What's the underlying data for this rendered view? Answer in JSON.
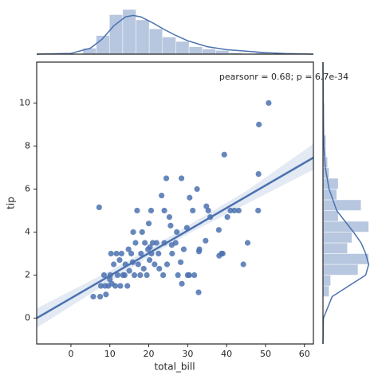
{
  "chart_data": [
    {
      "type": "scatter",
      "annotation": "pearsonr = 0.68; p = 6.7e-34",
      "x_label": "total_bill",
      "y_label": "tip",
      "color": "#4c72b0",
      "xlim": [
        -8.8,
        62.3
      ],
      "ylim": [
        -1.2,
        11.9
      ],
      "xticks": [
        0,
        10,
        20,
        30,
        40,
        50,
        60
      ],
      "yticks": [
        0,
        2,
        4,
        6,
        8,
        10
      ],
      "x": [
        50.8,
        48.3,
        7.25,
        48.2,
        44.3,
        43.1,
        45.4,
        39.4,
        32.4,
        34.8,
        35.3,
        41,
        40.2,
        42,
        48.1,
        38.7,
        39,
        34.6,
        38,
        29.8,
        25.3,
        24,
        23.3,
        24.5,
        28.4,
        30.5,
        31.3,
        20.6,
        20,
        17,
        16,
        18.3,
        20.3,
        22.7,
        22,
        25.6,
        26,
        27.2,
        28.2,
        29,
        30,
        31.7,
        32.8,
        28.5,
        26.9,
        25.9,
        24,
        23.7,
        21.5,
        20.7,
        19.8,
        19,
        18,
        17.3,
        16.3,
        15.5,
        14.8,
        14,
        13.4,
        13,
        12.7,
        12,
        11.4,
        11,
        10.5,
        10,
        9.6,
        8.8,
        8.5,
        7.5,
        5.75,
        7.7,
        9,
        10.1,
        10.3,
        11.7,
        12.5,
        13.8,
        14.5,
        15,
        15.9,
        16.6,
        17.8,
        18.7,
        19.5,
        20.2,
        21,
        22.5,
        24.7,
        27.5,
        30.4,
        33,
        35.8,
        32.9,
        38.1
      ],
      "y": [
        10,
        9,
        5.15,
        6.7,
        2.5,
        5,
        3.5,
        7.6,
        6,
        5.2,
        5,
        5,
        4.7,
        5,
        5,
        3,
        3,
        3.6,
        4.1,
        4.2,
        4.7,
        5,
        5.7,
        6.5,
        6.5,
        5.6,
        5,
        5,
        4.4,
        5,
        4,
        4,
        3.3,
        2.3,
        3.5,
        4.3,
        3,
        4,
        2.6,
        3.2,
        2,
        2,
        1.2,
        1.6,
        3.5,
        3.4,
        3.5,
        2,
        2.5,
        3,
        3.2,
        3.5,
        3,
        2.5,
        2,
        3,
        3.2,
        2.5,
        2,
        3,
        1.5,
        2,
        1.5,
        2.5,
        1.6,
        1.8,
        1.5,
        1.5,
        2,
        1,
        1,
        1.5,
        1.1,
        2,
        3,
        3,
        2.7,
        2,
        1.5,
        2.2,
        2.6,
        3.5,
        2,
        2.3,
        2,
        2.7,
        3.5,
        3,
        2.5,
        2,
        2,
        3.2,
        4.7,
        3.1,
        2.9
      ],
      "regression": {
        "x": [
          -8.8,
          62.3
        ],
        "y": [
          0,
          7.46
        ]
      },
      "band": {
        "x": [
          -8.8,
          10,
          20,
          30,
          45,
          62.3
        ],
        "lower": [
          -0.45,
          1.7,
          2.85,
          3.9,
          5.3,
          6.9
        ],
        "upper": [
          0.45,
          2.2,
          3.2,
          4.3,
          5.9,
          8.1
        ]
      }
    },
    {
      "type": "histogram",
      "color": "#4c72b0",
      "ylim": [
        0,
        0.062
      ],
      "bins": [
        3.07,
        6.48,
        9.89,
        13.3,
        16.71,
        20.12,
        23.53,
        26.94,
        30.35,
        33.76,
        37.17,
        40.58,
        43.99,
        47.4,
        50.81
      ],
      "values": [
        0.008,
        0.025,
        0.053,
        0.06,
        0.046,
        0.034,
        0.023,
        0.017,
        0.01,
        0.007,
        0.005,
        0.002,
        0.001,
        0.002
      ],
      "kde": {
        "x": [
          -8.8,
          0,
          5,
          8,
          11,
          14,
          16,
          18,
          21,
          24,
          27,
          30,
          35,
          40,
          45,
          50,
          55,
          62.3
        ],
        "y": [
          0,
          0.001,
          0.008,
          0.02,
          0.038,
          0.05,
          0.052,
          0.05,
          0.042,
          0.033,
          0.025,
          0.018,
          0.01,
          0.006,
          0.004,
          0.002,
          0.0008,
          0
        ]
      }
    },
    {
      "type": "histogram",
      "orientation": "horizontal",
      "color": "#4c72b0",
      "xlim": [
        0,
        0.34
      ],
      "bins": [
        1,
        1.5,
        2,
        2.5,
        3,
        3.5,
        4,
        4.5,
        5,
        5.5,
        6,
        6.5,
        7,
        7.5,
        8,
        8.5,
        9,
        9.5,
        10
      ],
      "values": [
        0.04,
        0.05,
        0.23,
        0.3,
        0.16,
        0.19,
        0.3,
        0.1,
        0.25,
        0.09,
        0.1,
        0.04,
        0.03,
        0.02,
        0.02,
        0.01,
        0.01,
        0.01
      ],
      "kde": {
        "x": [
          -1.2,
          0,
          1,
          1.5,
          2,
          2.5,
          3,
          3.5,
          4,
          5,
          6,
          7,
          8,
          9,
          10,
          11.9
        ],
        "y": [
          0,
          0.003,
          0.06,
          0.17,
          0.28,
          0.3,
          0.28,
          0.25,
          0.2,
          0.09,
          0.04,
          0.015,
          0.006,
          0.003,
          0.002,
          0
        ]
      }
    }
  ]
}
